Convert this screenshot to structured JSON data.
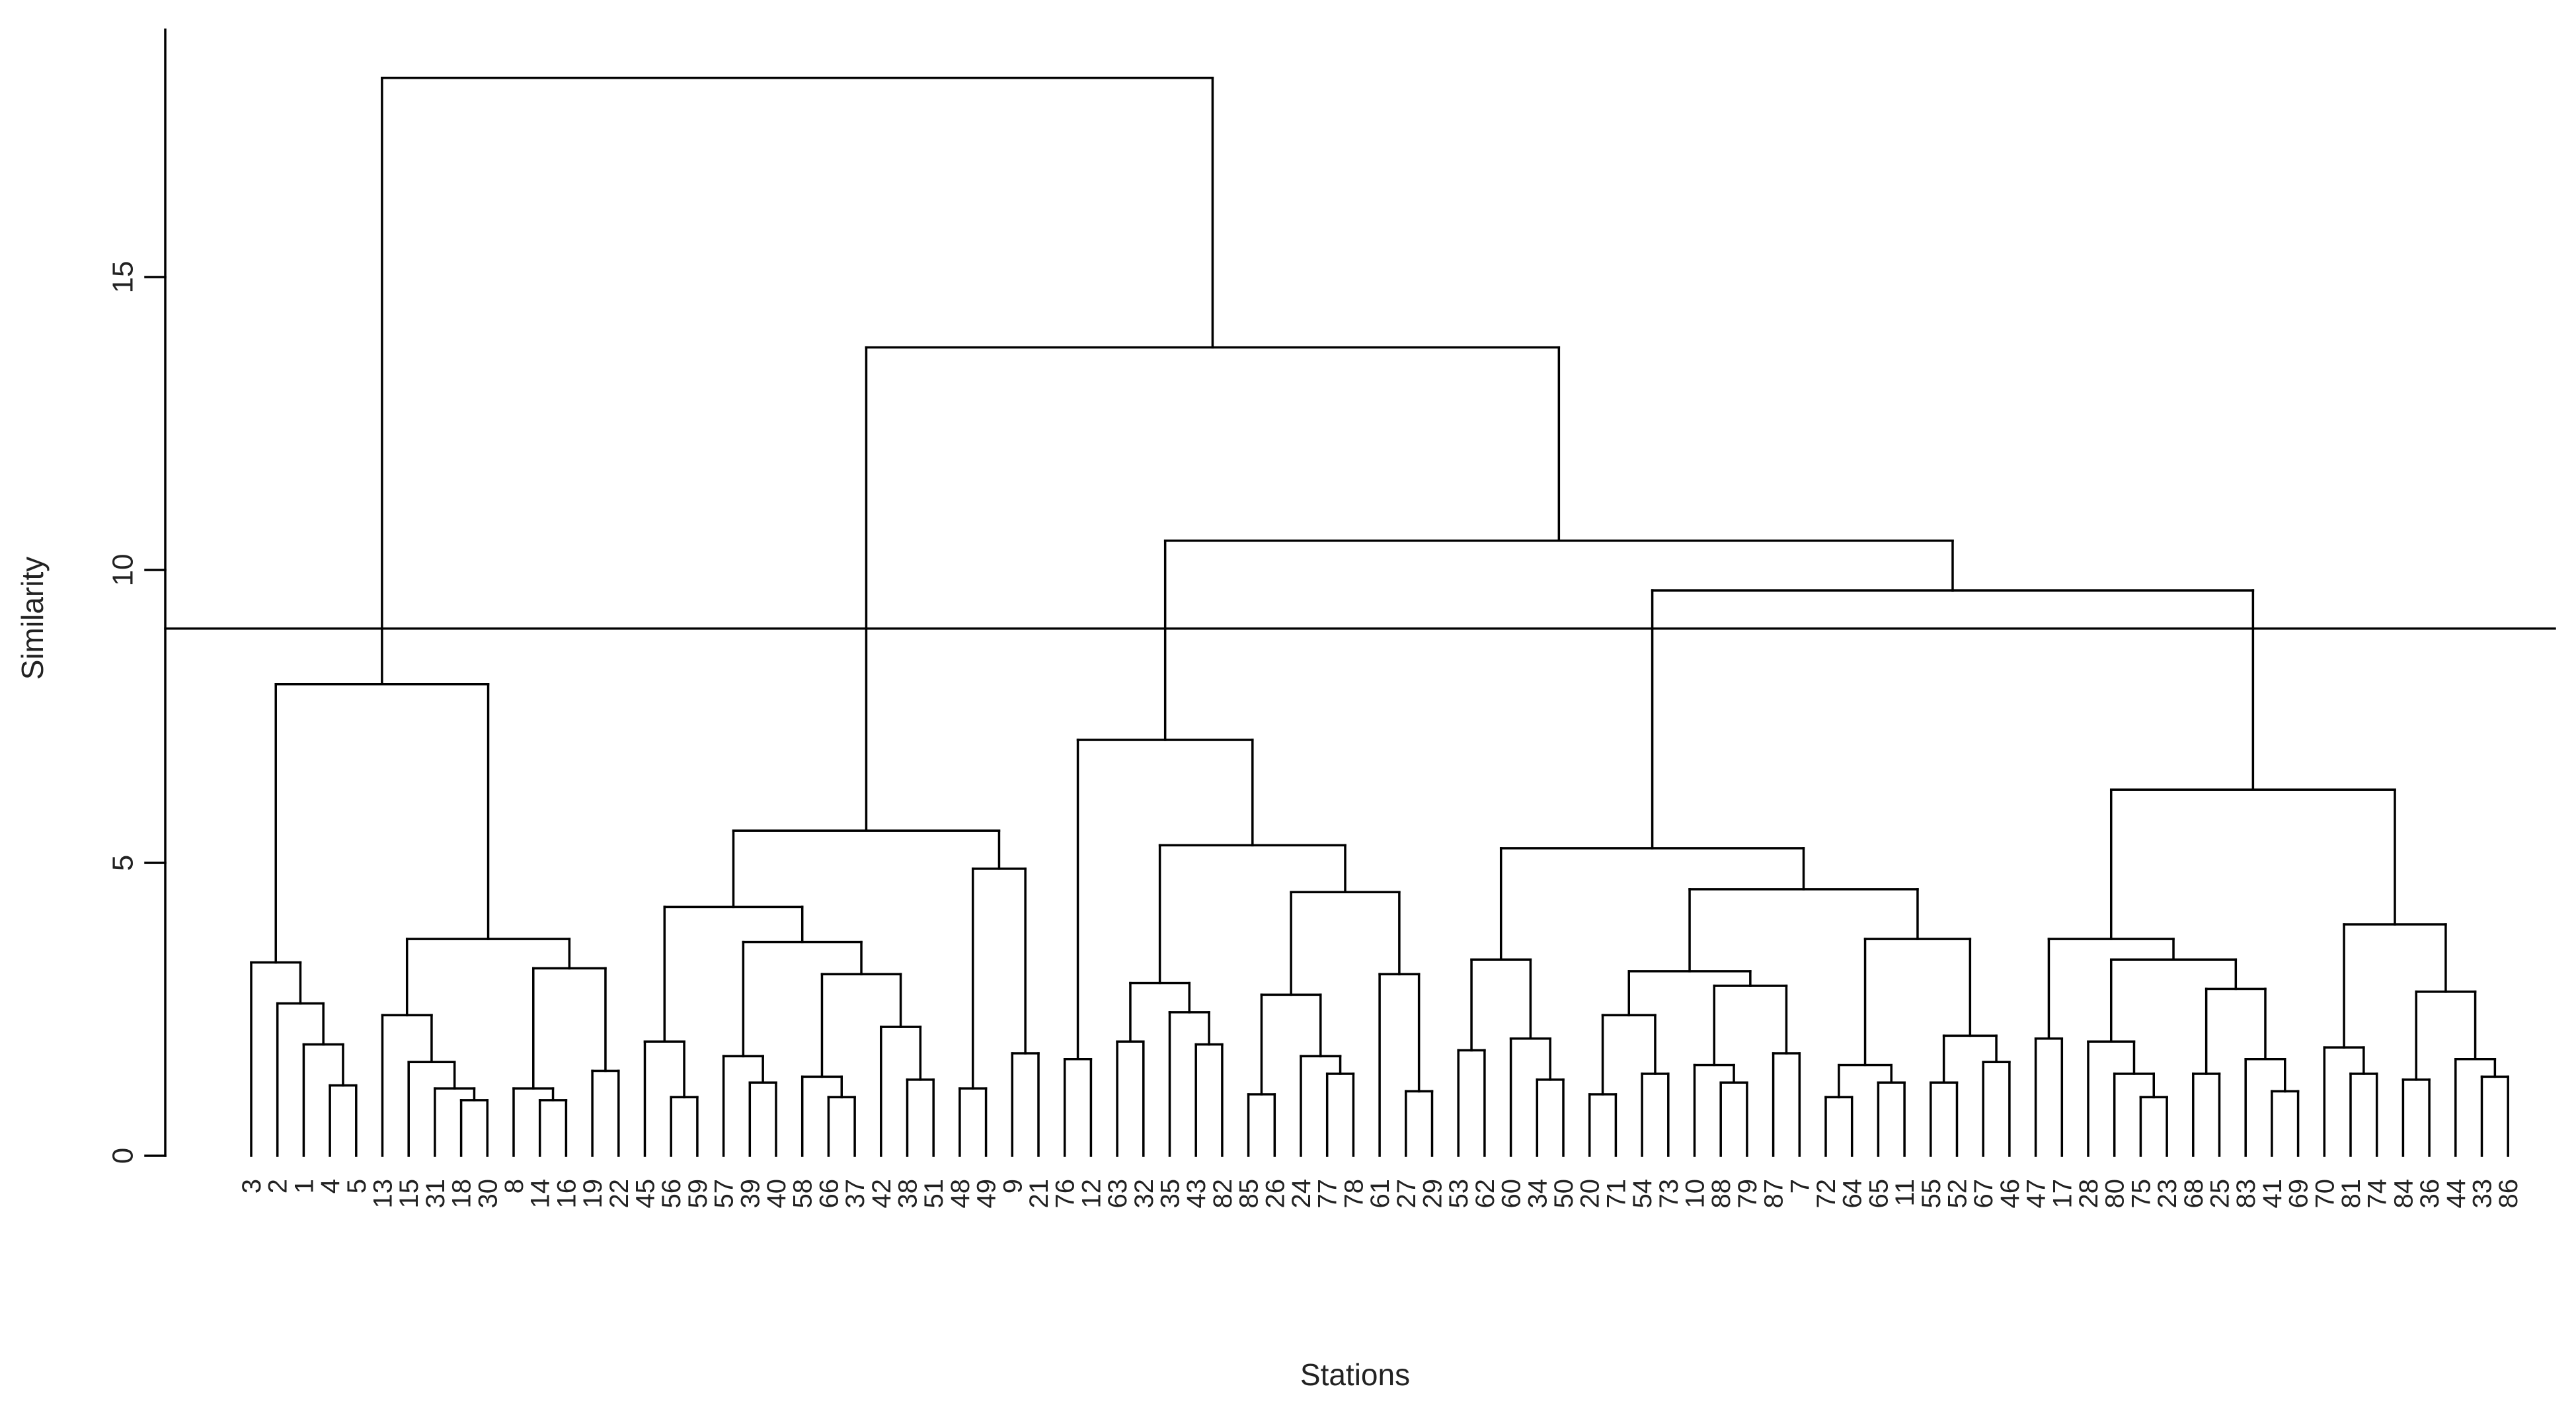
{
  "chart_data": {
    "type": "dendrogram",
    "xlabel": "Stations",
    "ylabel": "Similarity",
    "ylim": [
      0,
      19
    ],
    "yticks": [
      0,
      5,
      10,
      15
    ],
    "cut_height": 9,
    "leaves": [
      "3",
      "2",
      "1",
      "4",
      "5",
      "13",
      "15",
      "31",
      "18",
      "30",
      "8",
      "14",
      "16",
      "19",
      "22",
      "45",
      "56",
      "59",
      "57",
      "39",
      "40",
      "58",
      "66",
      "37",
      "42",
      "38",
      "51",
      "48",
      "49",
      "9",
      "21",
      "76",
      "12",
      "63",
      "32",
      "35",
      "43",
      "82",
      "85",
      "26",
      "24",
      "77",
      "78",
      "61",
      "27",
      "29",
      "53",
      "62",
      "60",
      "34",
      "50",
      "20",
      "71",
      "54",
      "73",
      "10",
      "88",
      "79",
      "87",
      "7",
      "72",
      "64",
      "65",
      "11",
      "55",
      "52",
      "67",
      "46",
      "47",
      "17",
      "28",
      "80",
      "75",
      "23",
      "68",
      "25",
      "83",
      "41",
      "69",
      "70",
      "81",
      "74",
      "84",
      "36",
      "44",
      "33",
      "86"
    ],
    "tree": [
      18.4,
      [
        8.05,
        [
          3.3,
          "3",
          [
            2.6,
            "2",
            [
              1.9,
              "1",
              [
                1.2,
                "4",
                "5"
              ]
            ]
          ]
        ],
        [
          3.7,
          [
            2.4,
            "13",
            [
              1.6,
              "15",
              [
                1.15,
                "31",
                [
                  0.95,
                  "18",
                  "30"
                ]
              ]
            ]
          ],
          [
            3.2,
            [
              1.15,
              "8",
              [
                0.95,
                "14",
                "16"
              ]
            ],
            [
              1.45,
              "19",
              "22"
            ]
          ]
        ]
      ],
      [
        13.8,
        [
          5.55,
          [
            4.25,
            [
              1.95,
              "45",
              [
                1.0,
                "56",
                "59"
              ]
            ],
            [
              3.65,
              [
                1.7,
                "57",
                [
                  1.25,
                  "39",
                  "40"
                ]
              ],
              [
                3.1,
                [
                  1.35,
                  "58",
                  [
                    1.0,
                    "66",
                    "37"
                  ]
                ],
                [
                  2.2,
                  "42",
                  [
                    1.3,
                    "38",
                    "51"
                  ]
                ]
              ]
            ]
          ],
          [
            4.9,
            [
              1.15,
              "48",
              "49"
            ],
            [
              1.75,
              "9",
              "21"
            ]
          ]
        ],
        [
          10.5,
          [
            7.1,
            [
              1.65,
              "76",
              "12"
            ],
            [
              5.3,
              [
                2.95,
                [
                  1.95,
                  "63",
                  "32"
                ],
                [
                  2.45,
                  "35",
                  [
                    1.9,
                    "43",
                    "82"
                  ]
                ]
              ],
              [
                4.5,
                [
                  2.75,
                  [
                    1.05,
                    "85",
                    "26"
                  ],
                  [
                    1.7,
                    "24",
                    [
                      1.4,
                      "77",
                      "78"
                    ]
                  ]
                ],
                [
                  3.1,
                  "61",
                  [
                    1.1,
                    "27",
                    "29"
                  ]
                ]
              ]
            ]
          ],
          [
            9.65,
            [
              5.25,
              [
                3.35,
                [
                  1.8,
                  "53",
                  "62"
                ],
                [
                  2.0,
                  "60",
                  [
                    1.3,
                    "34",
                    "50"
                  ]
                ]
              ],
              [
                4.55,
                [
                  3.15,
                  [
                    2.4,
                    [
                      1.05,
                      "20",
                      "71"
                    ],
                    [
                      1.4,
                      "54",
                      "73"
                    ]
                  ],
                  [
                    2.9,
                    [
                      1.55,
                      "10",
                      [
                        1.25,
                        "88",
                        "79"
                      ]
                    ],
                    [
                      1.75,
                      "87",
                      "7"
                    ]
                  ]
                ],
                [
                  3.7,
                  [
                    1.55,
                    [
                      1.0,
                      "72",
                      "64"
                    ],
                    [
                      1.25,
                      "65",
                      "11"
                    ]
                  ],
                  [
                    2.05,
                    [
                      1.25,
                      "55",
                      "52"
                    ],
                    [
                      1.6,
                      "67",
                      "46"
                    ]
                  ]
                ]
              ]
            ],
            [
              6.25,
              [
                3.7,
                [
                  2.0,
                  "47",
                  "17"
                ],
                [
                  3.35,
                  [
                    1.95,
                    "28",
                    [
                      1.4,
                      "80",
                      [
                        1.0,
                        "75",
                        "23"
                      ]
                    ]
                  ],
                  [
                    2.85,
                    [
                      1.4,
                      "68",
                      "25"
                    ],
                    [
                      1.65,
                      "83",
                      [
                        1.1,
                        "41",
                        "69"
                      ]
                    ]
                  ]
                ]
              ],
              [
                3.95,
                [
                  1.85,
                  "70",
                  [
                    1.4,
                    "81",
                    "74"
                  ]
                ],
                [
                  2.8,
                  [
                    1.3,
                    "84",
                    "36"
                  ],
                  [
                    1.65,
                    "44",
                    [
                      1.35,
                      "33",
                      "86"
                    ]
                  ]
                ]
              ]
            ]
          ]
        ]
      ]
    ]
  }
}
